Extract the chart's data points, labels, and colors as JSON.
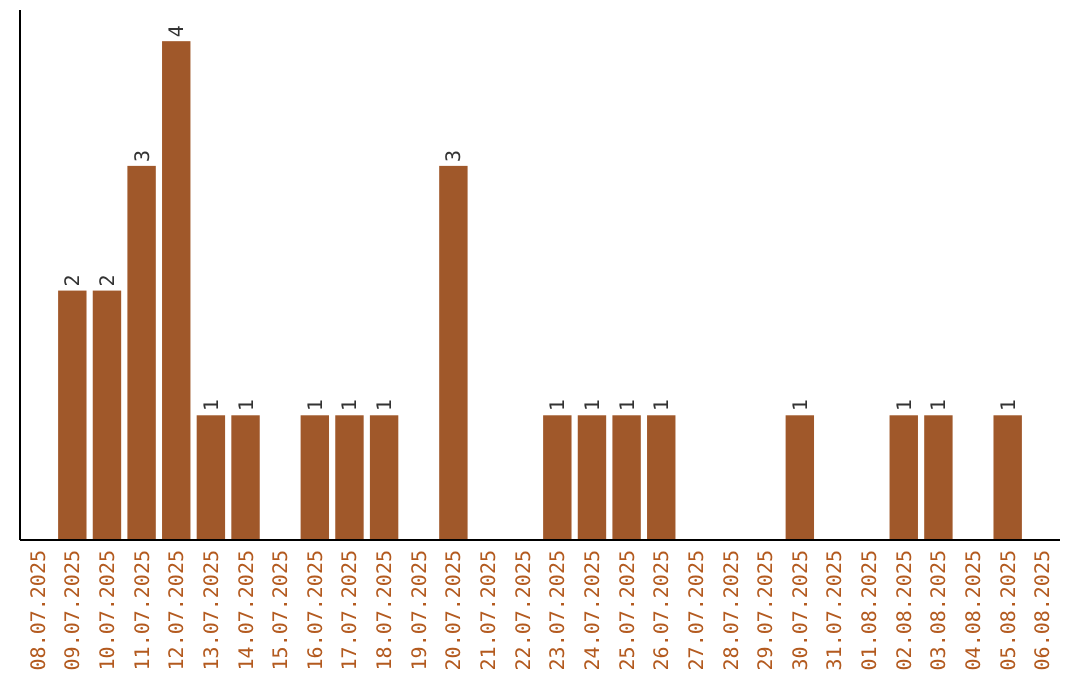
{
  "chart_data": {
    "type": "bar",
    "categories": [
      "08.07.2025",
      "09.07.2025",
      "10.07.2025",
      "11.07.2025",
      "12.07.2025",
      "13.07.2025",
      "14.07.2025",
      "15.07.2025",
      "16.07.2025",
      "17.07.2025",
      "18.07.2025",
      "19.07.2025",
      "20.07.2025",
      "21.07.2025",
      "22.07.2025",
      "23.07.2025",
      "24.07.2025",
      "25.07.2025",
      "26.07.2025",
      "27.07.2025",
      "28.07.2025",
      "29.07.2025",
      "30.07.2025",
      "31.07.2025",
      "01.08.2025",
      "02.08.2025",
      "03.08.2025",
      "04.08.2025",
      "05.08.2025",
      "06.08.2025"
    ],
    "values": [
      0,
      2,
      2,
      3,
      4,
      1,
      1,
      0,
      1,
      1,
      1,
      0,
      3,
      0,
      0,
      1,
      1,
      1,
      1,
      0,
      0,
      0,
      1,
      0,
      0,
      1,
      1,
      0,
      1,
      0
    ],
    "value_labels": [
      null,
      "2",
      "2",
      "3",
      "4",
      "1",
      "1",
      null,
      "1",
      "1",
      "1",
      null,
      "3",
      null,
      null,
      "1",
      "1",
      "1",
      "1",
      null,
      null,
      null,
      "1",
      null,
      null,
      "1",
      "1",
      null,
      "1",
      null
    ],
    "color": "#a0582a",
    "ylim": [
      0,
      4.25
    ],
    "tick_labels": "x",
    "grid": false
  }
}
